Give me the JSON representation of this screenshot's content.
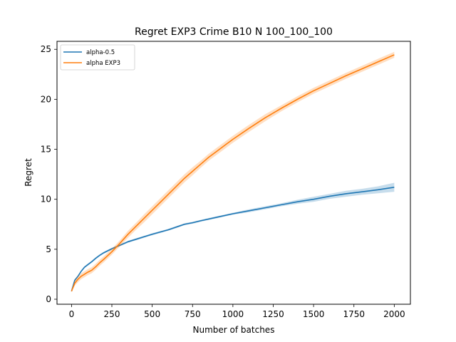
{
  "chart_data": {
    "type": "line",
    "title": "Regret EXP3 Crime B10 N 100_100_100",
    "xlabel": "Number of batches",
    "ylabel": "Regret",
    "xlim": [
      -90,
      2100
    ],
    "ylim": [
      -0.5,
      25.8
    ],
    "x_ticks": [
      0,
      250,
      500,
      750,
      1000,
      1250,
      1500,
      1750,
      2000
    ],
    "y_ticks": [
      0,
      5,
      10,
      15,
      20,
      25
    ],
    "grid": false,
    "legend_position": "top-left",
    "series": [
      {
        "name": "alpha-0.5",
        "color": "#1f77b4",
        "x": [
          0,
          20,
          40,
          60,
          80,
          100,
          125,
          150,
          175,
          200,
          250,
          300,
          350,
          400,
          450,
          500,
          600,
          700,
          750,
          800,
          900,
          1000,
          1100,
          1200,
          1300,
          1400,
          1500,
          1600,
          1700,
          1800,
          1900,
          2000
        ],
        "y": [
          0.8,
          1.9,
          2.3,
          2.8,
          3.2,
          3.45,
          3.75,
          4.1,
          4.4,
          4.65,
          5.05,
          5.4,
          5.75,
          6.0,
          6.25,
          6.5,
          6.95,
          7.5,
          7.65,
          7.85,
          8.2,
          8.55,
          8.85,
          9.15,
          9.45,
          9.75,
          10.0,
          10.3,
          10.55,
          10.75,
          10.95,
          11.2
        ],
        "band": [
          0.05,
          0.1,
          0.1,
          0.1,
          0.1,
          0.1,
          0.1,
          0.1,
          0.1,
          0.1,
          0.1,
          0.1,
          0.1,
          0.1,
          0.1,
          0.1,
          0.1,
          0.1,
          0.1,
          0.1,
          0.1,
          0.1,
          0.15,
          0.15,
          0.15,
          0.2,
          0.25,
          0.25,
          0.3,
          0.3,
          0.35,
          0.45
        ]
      },
      {
        "name": "alpha EXP3",
        "color": "#ff7f0e",
        "x": [
          0,
          20,
          40,
          60,
          80,
          100,
          125,
          150,
          175,
          200,
          250,
          300,
          350,
          400,
          450,
          500,
          550,
          600,
          650,
          700,
          750,
          800,
          850,
          900,
          950,
          1000,
          1100,
          1200,
          1300,
          1400,
          1500,
          1600,
          1700,
          1800,
          1900,
          2000
        ],
        "y": [
          0.8,
          1.6,
          2.0,
          2.3,
          2.5,
          2.7,
          2.9,
          3.25,
          3.65,
          4.0,
          4.75,
          5.6,
          6.5,
          7.3,
          8.1,
          8.9,
          9.7,
          10.5,
          11.3,
          12.1,
          12.8,
          13.5,
          14.2,
          14.8,
          15.4,
          16.0,
          17.1,
          18.15,
          19.1,
          20.0,
          20.85,
          21.6,
          22.35,
          23.05,
          23.75,
          24.45
        ],
        "band": [
          0.1,
          0.25,
          0.3,
          0.3,
          0.3,
          0.3,
          0.3,
          0.3,
          0.3,
          0.3,
          0.3,
          0.3,
          0.35,
          0.35,
          0.4,
          0.4,
          0.4,
          0.4,
          0.4,
          0.4,
          0.4,
          0.35,
          0.35,
          0.35,
          0.35,
          0.35,
          0.35,
          0.35,
          0.3,
          0.3,
          0.3,
          0.3,
          0.3,
          0.3,
          0.3,
          0.3
        ]
      }
    ]
  }
}
